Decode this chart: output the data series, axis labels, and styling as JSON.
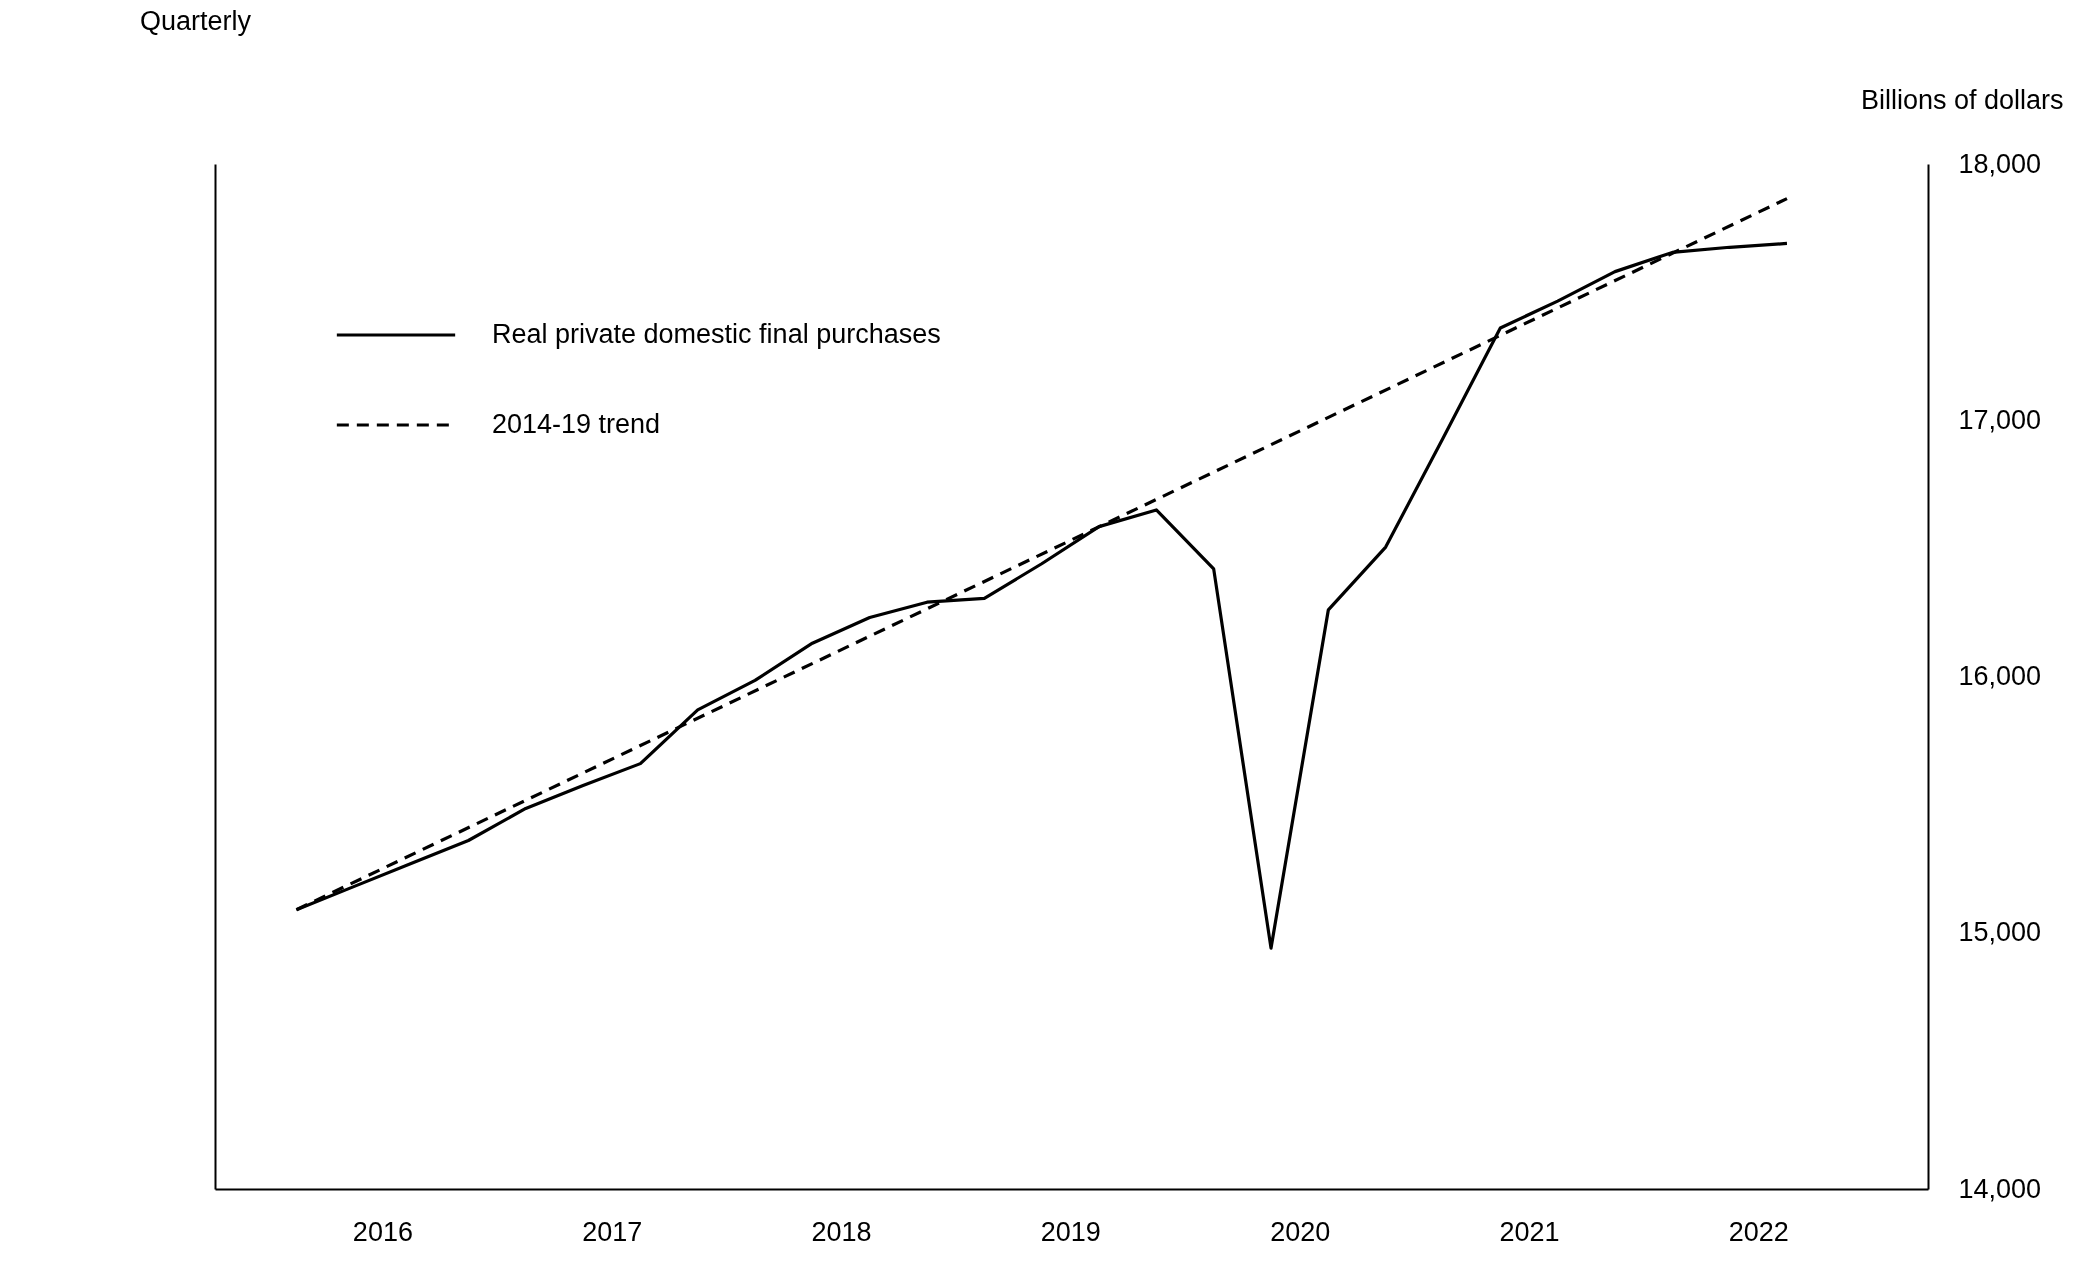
{
  "chart_data": {
    "type": "line",
    "ylabel": "Billions of dollars",
    "annotations": [
      "Quarterly"
    ],
    "xlim": [
      2015.77,
      2023.24
    ],
    "xticks": [
      {
        "value": 2016.5,
        "label": "2016"
      },
      {
        "value": 2017.5,
        "label": "2017"
      },
      {
        "value": 2018.5,
        "label": "2018"
      },
      {
        "value": 2019.5,
        "label": "2019"
      },
      {
        "value": 2020.5,
        "label": "2020"
      },
      {
        "value": 2021.5,
        "label": "2021"
      },
      {
        "value": 2022.5,
        "label": "2022"
      }
    ],
    "ylim": [
      14000,
      18000
    ],
    "yticks": [
      {
        "value": 14000,
        "label": "14,000"
      },
      {
        "value": 15000,
        "label": "15,000"
      },
      {
        "value": 16000,
        "label": "16,000"
      },
      {
        "value": 17000,
        "label": "17,000"
      },
      {
        "value": 18000,
        "label": "18,000"
      }
    ],
    "x": [
      2016.125,
      2016.375,
      2016.625,
      2016.875,
      2017.125,
      2017.375,
      2017.625,
      2017.875,
      2018.125,
      2018.375,
      2018.625,
      2018.875,
      2019.125,
      2019.375,
      2019.625,
      2019.875,
      2020.125,
      2020.375,
      2020.625,
      2020.875,
      2021.125,
      2021.375,
      2021.625,
      2021.875,
      2022.125,
      2022.375,
      2022.625
    ],
    "series": [
      {
        "name": "Real private domestic final purchases",
        "color": "#000000",
        "line_style": "solid",
        "values": [
          15090,
          15180,
          15270,
          15360,
          15485,
          15575,
          15660,
          15870,
          15985,
          16130,
          16230,
          16290,
          16305,
          16440,
          16585,
          16650,
          16420,
          14940,
          16260,
          16505,
          16930,
          17360,
          17465,
          17580,
          17655,
          17675,
          17690
        ]
      },
      {
        "name": "2014-19 trend",
        "color": "#000000",
        "line_style": "dashed",
        "x": [
          2016.125,
          2022.625
        ],
        "values": [
          15090,
          17865
        ]
      }
    ],
    "grid": false,
    "legend": "top left"
  }
}
